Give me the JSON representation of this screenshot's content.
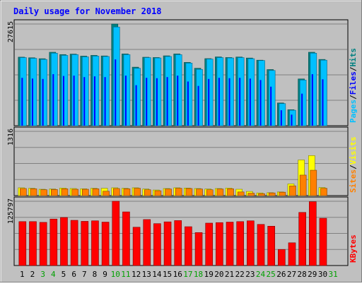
{
  "chart_data": [
    {
      "type": "bar",
      "title": "Daily usage for November 2018",
      "categories": [
        "1",
        "2",
        "3",
        "4",
        "5",
        "6",
        "7",
        "8",
        "9",
        "10",
        "11",
        "12",
        "13",
        "14",
        "15",
        "16",
        "17",
        "18",
        "19",
        "20",
        "21",
        "22",
        "23",
        "24",
        "25",
        "26",
        "27",
        "28",
        "29",
        "30",
        "31"
      ],
      "weekend_days": [
        "3",
        "4",
        "10",
        "11",
        "17",
        "18",
        "24",
        "25",
        "31"
      ],
      "ymax_label": "27615",
      "ylim": [
        0,
        27615
      ],
      "grid": true,
      "y_label_parts": [
        "Pages",
        "/",
        "Files",
        "/",
        "Hits"
      ],
      "series": [
        {
          "name": "Hits",
          "color": "#008080",
          "values": [
            18620,
            18450,
            18200,
            19950,
            19320,
            19450,
            18900,
            19100,
            18950,
            27615,
            19500,
            15900,
            18600,
            18520,
            18980,
            19500,
            17200,
            15600,
            18220,
            18680,
            18520,
            18650,
            18380,
            17800,
            15250,
            6180,
            4350,
            12700,
            19950,
            18000,
            null
          ]
        },
        {
          "name": "Files",
          "color": "#0000ff",
          "values": [
            13000,
            12800,
            12700,
            14000,
            13500,
            13600,
            13200,
            13400,
            13200,
            18000,
            13600,
            11000,
            13000,
            12900,
            13200,
            13600,
            12000,
            10800,
            12700,
            13000,
            12900,
            13000,
            12800,
            12400,
            10600,
            4200,
            3000,
            8700,
            14000,
            12600,
            null
          ]
        },
        {
          "name": "Pages",
          "color": "#00c0ff",
          "values": [
            18500,
            18300,
            18000,
            19700,
            19100,
            19300,
            18700,
            18900,
            18800,
            26800,
            19300,
            15600,
            18500,
            18400,
            18800,
            19300,
            17000,
            15300,
            18100,
            18500,
            18400,
            18500,
            18200,
            17700,
            15000,
            6000,
            4200,
            12400,
            19700,
            17800,
            null
          ]
        }
      ]
    },
    {
      "type": "bar",
      "ymax_label": "1316",
      "ylim": [
        0,
        1316
      ],
      "grid": true,
      "y_label_parts": [
        "Sites",
        "/",
        "Visits"
      ],
      "series": [
        {
          "name": "Visits",
          "color": "#ffff00",
          "values": [
            160,
            150,
            130,
            135,
            155,
            145,
            140,
            150,
            150,
            160,
            150,
            160,
            135,
            115,
            145,
            160,
            155,
            145,
            135,
            145,
            155,
            130,
            85,
            55,
            60,
            75,
            240,
            730,
            820,
            165,
            null
          ]
        },
        {
          "name": "Sites",
          "color": "#ff8000",
          "values": [
            145,
            140,
            120,
            125,
            140,
            130,
            130,
            140,
            90,
            145,
            140,
            150,
            120,
            100,
            135,
            150,
            145,
            135,
            120,
            135,
            140,
            75,
            50,
            40,
            55,
            70,
            200,
            420,
            520,
            150,
            null
          ]
        }
      ]
    },
    {
      "type": "bar",
      "ymax_label": "125797",
      "ylim": [
        0,
        125797
      ],
      "grid": true,
      "y_label_parts": [
        "KBytes"
      ],
      "series": [
        {
          "name": "KBytes",
          "color": "#ff0000",
          "values": [
            86000,
            86000,
            84500,
            91000,
            94000,
            88500,
            86500,
            87500,
            85000,
            125797,
            105000,
            75000,
            90000,
            82000,
            85500,
            88000,
            76000,
            64500,
            83000,
            84000,
            85000,
            86000,
            87500,
            80500,
            77000,
            31500,
            44500,
            104000,
            125000,
            92500,
            null
          ]
        }
      ]
    }
  ],
  "colors": {
    "page_background": "#ffffff",
    "outer_panel": "#c0c0c0",
    "plot_background": "#c0c0c0",
    "title_color": "#0000ff",
    "label_color": "#000000",
    "weekend_label_color": "#00a000",
    "gridline": "#808080"
  }
}
